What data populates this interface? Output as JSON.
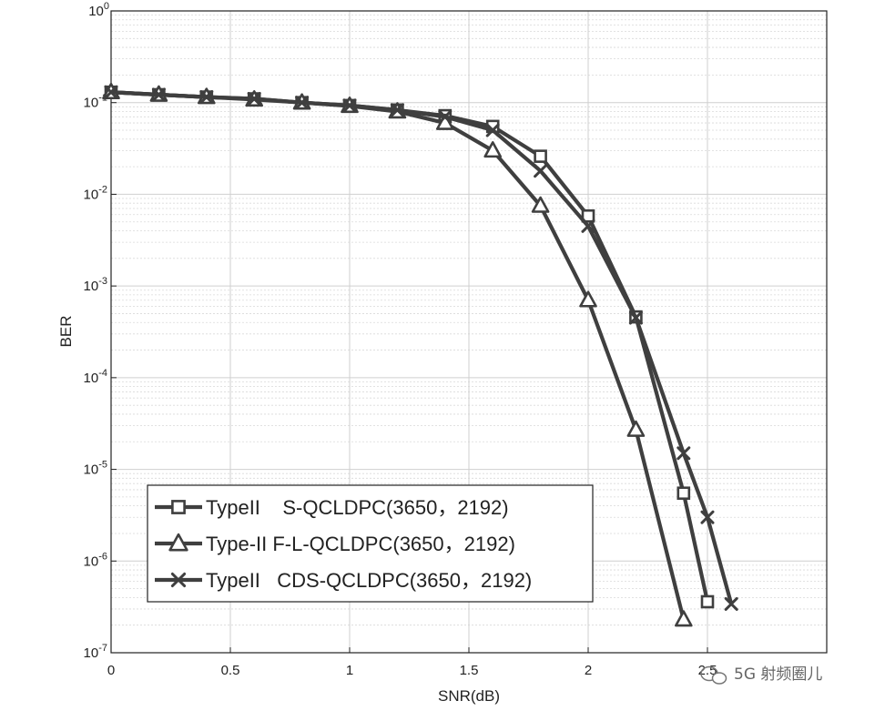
{
  "chart_data": {
    "type": "line",
    "title": "",
    "xlabel": "SNR(dB)",
    "ylabel": "BER",
    "xlim": [
      0,
      3
    ],
    "ylim_log10": [
      -7,
      0
    ],
    "yscale": "log",
    "grid": true,
    "x_ticks": [
      0,
      0.5,
      1,
      1.5,
      2,
      2.5
    ],
    "x_tick_labels": [
      "0",
      "0.5",
      "1",
      "1.5",
      "2",
      "2.5"
    ],
    "y_ticks_exp": [
      0,
      -1,
      -2,
      -3,
      -4,
      -5,
      -6,
      -7
    ],
    "legend_position": "bottom-left",
    "series": [
      {
        "name": "TypeII    S-QCLDPC(3650，2192)",
        "marker": "square",
        "x": [
          0,
          0.2,
          0.4,
          0.6,
          0.8,
          1.0,
          1.2,
          1.4,
          1.6,
          1.8,
          2.0,
          2.2,
          2.4,
          2.5
        ],
        "y": [
          0.13,
          0.122,
          0.115,
          0.11,
          0.1,
          0.093,
          0.083,
          0.072,
          0.055,
          0.026,
          0.0058,
          0.00046,
          5.5e-06,
          3.6e-07
        ]
      },
      {
        "name": "Type-II F-L-QCLDPC(3650，2192)",
        "marker": "triangle",
        "x": [
          0,
          0.2,
          0.4,
          0.6,
          0.8,
          1.0,
          1.2,
          1.4,
          1.6,
          1.8,
          2.0,
          2.2,
          2.4
        ],
        "y": [
          0.13,
          0.122,
          0.115,
          0.108,
          0.1,
          0.092,
          0.08,
          0.06,
          0.03,
          0.0075,
          0.0007,
          2.7e-05,
          2.3e-07
        ]
      },
      {
        "name": "TypeII   CDS-QCLDPC(3650，2192)",
        "marker": "x",
        "x": [
          0,
          0.2,
          0.4,
          0.6,
          0.8,
          1.0,
          1.2,
          1.4,
          1.6,
          1.8,
          2.0,
          2.2,
          2.4,
          2.5,
          2.6
        ],
        "y": [
          0.13,
          0.122,
          0.115,
          0.11,
          0.1,
          0.093,
          0.083,
          0.07,
          0.05,
          0.018,
          0.0045,
          0.00045,
          1.5e-05,
          3e-06,
          3.4e-07
        ]
      }
    ]
  },
  "watermark": "5G 射频圈儿",
  "colors": {
    "series": "#3f3f3f",
    "grid": "#d9d9d9",
    "axis": "#222222"
  }
}
